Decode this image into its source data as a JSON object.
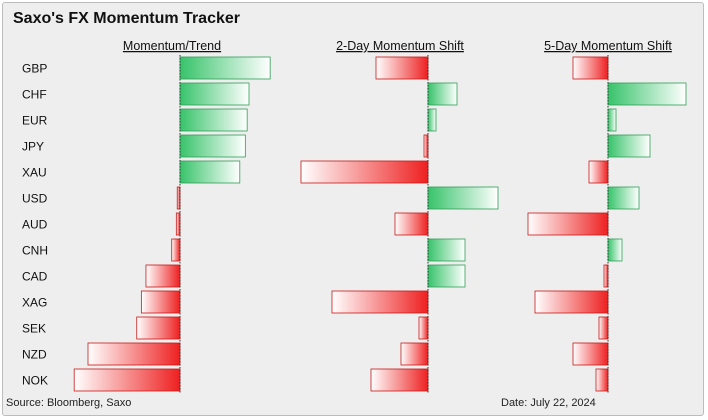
{
  "title": "Saxo's FX Momentum Tracker",
  "source": "Source: Bloomberg, Saxo",
  "date": "Date: July 22, 2024",
  "colors": {
    "positive": "#37c36a",
    "negative": "#ee2020",
    "background": "#eeeeee"
  },
  "chart_data": {
    "type": "bar",
    "orientation": "horizontal",
    "categories": [
      "GBP",
      "CHF",
      "EUR",
      "JPY",
      "XAU",
      "USD",
      "AUD",
      "CNH",
      "CAD",
      "XAG",
      "SEK",
      "NZD",
      "NOK"
    ],
    "panels": [
      {
        "title": "Momentum/Trend",
        "xlim": [
          -1.1,
          1.0
        ],
        "values": [
          0.98,
          0.75,
          0.73,
          0.71,
          0.65,
          -0.03,
          -0.04,
          -0.09,
          -0.37,
          -0.42,
          -0.47,
          -1.0,
          -1.15
        ]
      },
      {
        "title": "2-Day Momentum Shift",
        "xlim": [
          -1.3,
          0.75
        ],
        "values": [
          -0.52,
          0.29,
          0.08,
          -0.04,
          -1.27,
          0.7,
          -0.33,
          0.37,
          0.37,
          -0.96,
          -0.09,
          -0.27,
          -0.57
        ]
      },
      {
        "title": "5-Day Momentum Shift",
        "xlim": [
          -0.8,
          0.8
        ],
        "values": [
          -0.35,
          0.78,
          0.08,
          0.42,
          -0.19,
          0.31,
          -0.8,
          0.14,
          -0.04,
          -0.73,
          -0.09,
          -0.35,
          -0.12
        ]
      }
    ]
  }
}
